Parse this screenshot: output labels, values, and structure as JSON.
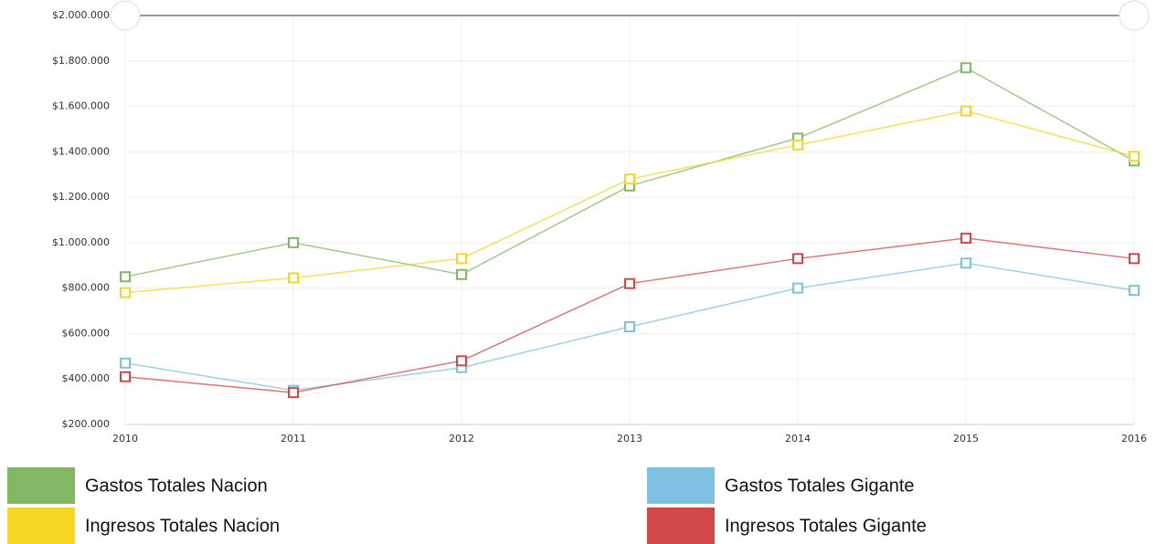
{
  "chart_data": {
    "type": "line",
    "x": [
      2010,
      2011,
      2012,
      2013,
      2014,
      2015,
      2016
    ],
    "xlim": [
      2010,
      2016
    ],
    "xticks": [
      2010,
      2011,
      2012,
      2013,
      2014,
      2015,
      2016
    ],
    "ylim": [
      200000,
      2000000
    ],
    "yticks": [
      {
        "value": 200000,
        "label": "$200.000"
      },
      {
        "value": 400000,
        "label": "$400.000"
      },
      {
        "value": 600000,
        "label": "$600.000"
      },
      {
        "value": 800000,
        "label": "$800.000"
      },
      {
        "value": 1000000,
        "label": "$1.000.000"
      },
      {
        "value": 1200000,
        "label": "$1.200.000"
      },
      {
        "value": 1400000,
        "label": "$1.400.000"
      },
      {
        "value": 1600000,
        "label": "$1.600.000"
      },
      {
        "value": 1800000,
        "label": "$1.800.000"
      },
      {
        "value": 2000000,
        "label": "$2.000.000"
      }
    ],
    "grid": true,
    "legend": "bottom",
    "series": [
      {
        "name": "Gastos Totales Nacion",
        "color": "#82b864",
        "values": [
          850000,
          1000000,
          860000,
          1250000,
          1460000,
          1770000,
          1360000
        ]
      },
      {
        "name": "Ingresos Totales Nacion",
        "color": "#f5d623",
        "values": [
          780000,
          845000,
          930000,
          1280000,
          1430000,
          1580000,
          1380000
        ]
      },
      {
        "name": "Gastos Totales Gigante",
        "color": "#7fc1e0",
        "values": [
          470000,
          350000,
          450000,
          630000,
          800000,
          910000,
          790000
        ]
      },
      {
        "name": "Ingresos Totales Gigante",
        "color": "#d04848",
        "values": [
          410000,
          340000,
          480000,
          820000,
          930000,
          1020000,
          930000
        ]
      }
    ]
  }
}
